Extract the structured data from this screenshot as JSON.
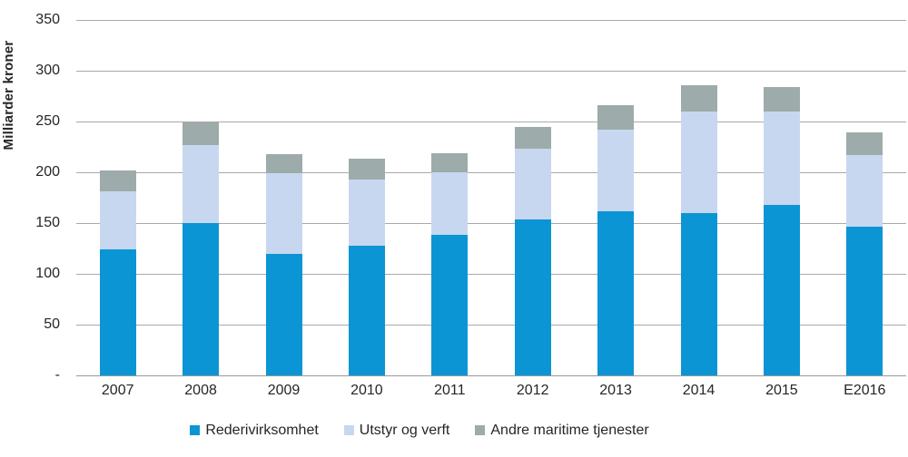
{
  "figure": {
    "background": "#ffffff",
    "text_color": "#262626",
    "gridline_color": "#a9a9a9",
    "axis_color": "#999999"
  },
  "chart_data": {
    "type": "bar",
    "stacked": true,
    "title": "",
    "ylabel": "Milliarder kroner",
    "xlabel": "",
    "categories": [
      "2007",
      "2008",
      "2009",
      "2010",
      "2011",
      "2012",
      "2013",
      "2014",
      "2015",
      "E2016"
    ],
    "series": [
      {
        "name": "Rederivirksomhet",
        "color": "#0b95d5",
        "values": [
          124,
          150,
          120,
          128,
          138,
          154,
          162,
          160,
          168,
          146
        ]
      },
      {
        "name": "Utstyr og verft",
        "color": "#c8d7f0",
        "values": [
          57,
          77,
          79,
          65,
          62,
          69,
          80,
          100,
          92,
          71
        ]
      },
      {
        "name": "Andre maritime tjenester",
        "color": "#9dabaa",
        "values": [
          21,
          22,
          19,
          20,
          19,
          22,
          24,
          26,
          24,
          22
        ]
      }
    ],
    "stack_totals": [
      202,
      249,
      218,
      213,
      219,
      245,
      266,
      286,
      284,
      239
    ],
    "ylim": [
      0,
      350
    ],
    "ytick_interval": 50,
    "ytick_labels": [
      "-",
      "50",
      "100",
      "150",
      "200",
      "250",
      "300",
      "350"
    ],
    "grid": true,
    "legend_position": "bottom"
  }
}
